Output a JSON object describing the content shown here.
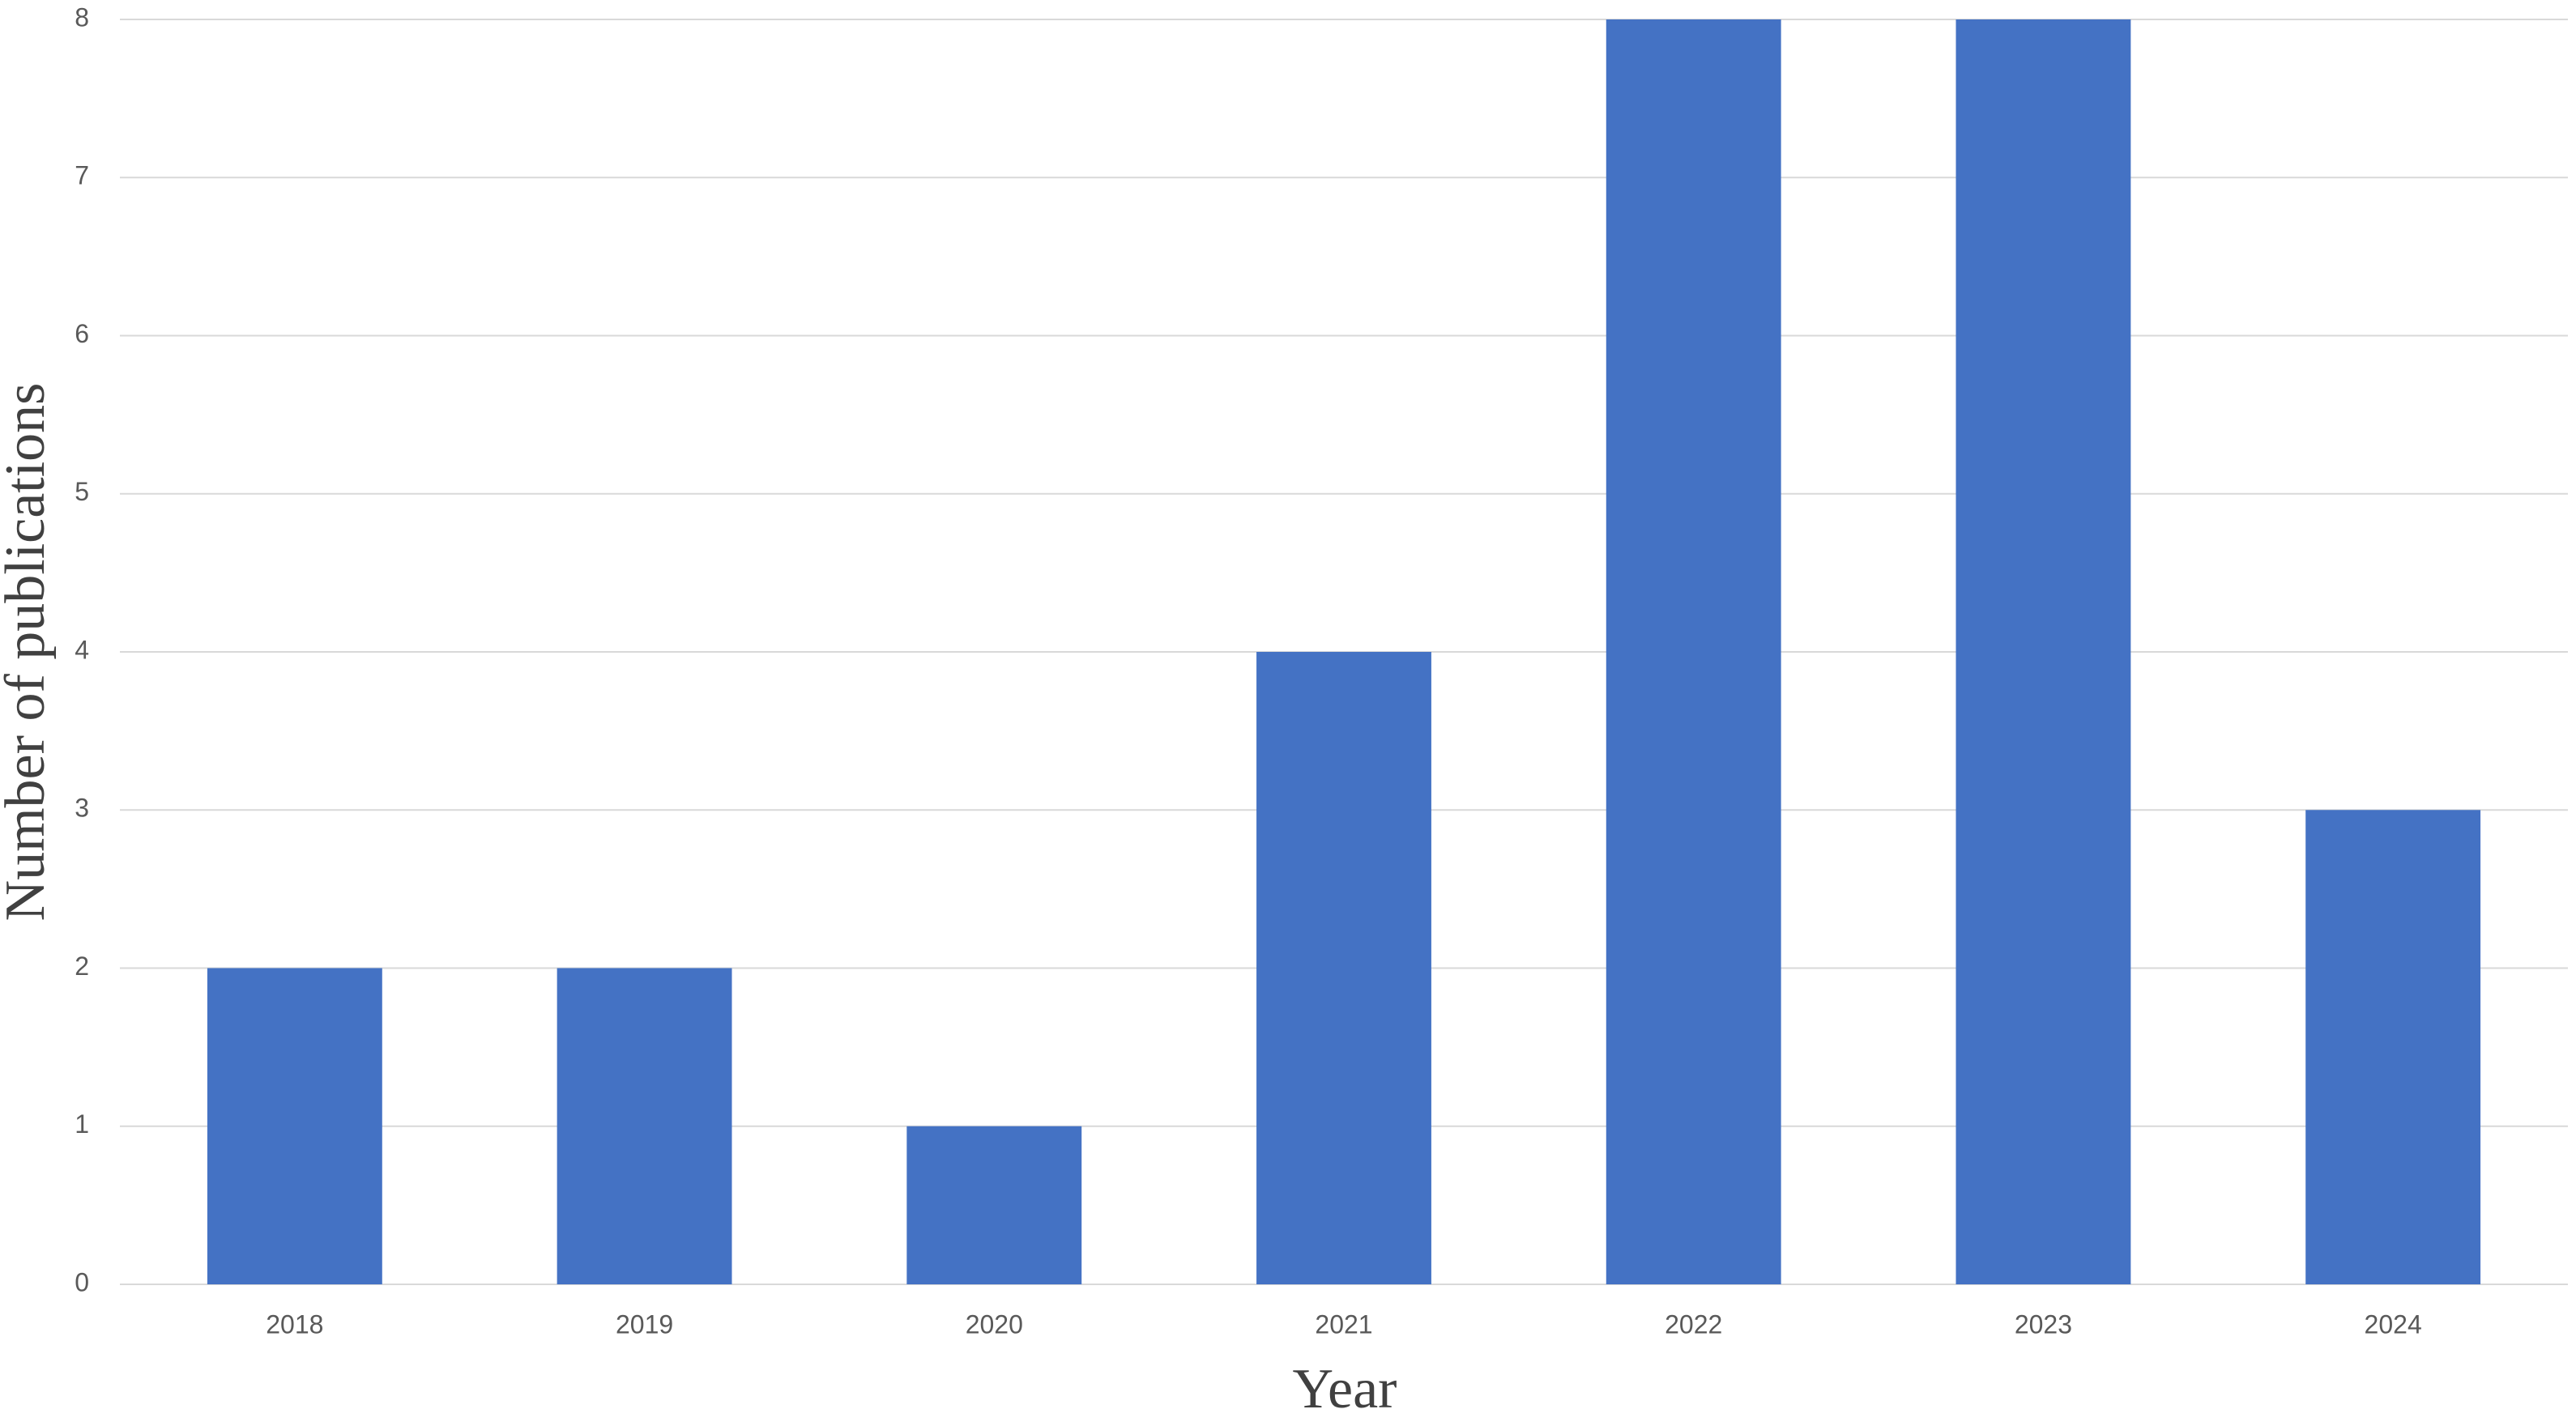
{
  "chart_data": {
    "type": "bar",
    "x_label": "Year",
    "y_label": "Number of publications",
    "categories": [
      "2018",
      "2019",
      "2020",
      "2021",
      "2022",
      "2023",
      "2024"
    ],
    "values": [
      2,
      2,
      1,
      4,
      8,
      8,
      3
    ],
    "color": "#4472c4",
    "ylim": [
      0,
      8
    ],
    "yticks": [
      0,
      1,
      2,
      3,
      4,
      5,
      6,
      7,
      8
    ],
    "grid": true
  }
}
